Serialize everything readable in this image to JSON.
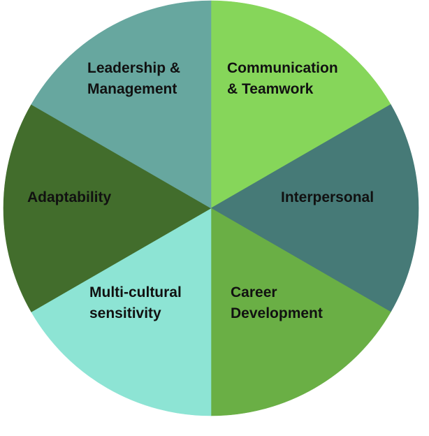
{
  "segments": [
    {
      "id": "communication",
      "lines": [
        "Communication",
        "& Teamwork"
      ],
      "color": "#86d65a"
    },
    {
      "id": "interpersonal",
      "lines": [
        "Interpersonal"
      ],
      "color": "#467a77"
    },
    {
      "id": "career",
      "lines": [
        "Career",
        "Development"
      ],
      "color": "#6aaf45"
    },
    {
      "id": "multicultural",
      "lines": [
        "Multi-cultural",
        "sensitivity"
      ],
      "color": "#8de4d4"
    },
    {
      "id": "adaptability",
      "lines": [
        "Adaptability"
      ],
      "color": "#426d2c"
    },
    {
      "id": "leadership",
      "lines": [
        "Leadership &",
        "Management"
      ],
      "color": "#67a79f"
    }
  ]
}
